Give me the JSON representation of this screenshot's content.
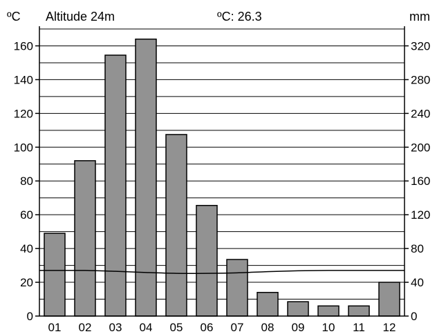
{
  "chart_data": {
    "type": "bar",
    "header": {
      "left_unit": "ºC",
      "altitude": "Altitude 24m",
      "mean_temp": "ºC: 26.3",
      "right_unit": "mm"
    },
    "categories": [
      "01",
      "02",
      "03",
      "04",
      "05",
      "06",
      "07",
      "08",
      "09",
      "10",
      "11",
      "12"
    ],
    "series": [
      {
        "axis": "right",
        "type": "bar",
        "values": [
          98,
          184,
          309,
          328,
          215,
          131,
          67,
          28,
          17,
          12,
          12,
          40
        ],
        "color": "#929292"
      },
      {
        "axis": "left",
        "type": "line",
        "values": [
          27.0,
          27.0,
          26.5,
          25.8,
          25.3,
          25.3,
          25.6,
          26.3,
          26.8,
          27.0,
          27.0,
          27.0
        ],
        "color": "#000000"
      }
    ],
    "y_left": {
      "ylim": [
        0,
        170
      ],
      "ticks": [
        0,
        20,
        40,
        60,
        80,
        100,
        120,
        140,
        160
      ]
    },
    "y_right": {
      "ylim": [
        0,
        340
      ],
      "ticks": [
        0,
        40,
        80,
        120,
        160,
        200,
        240,
        280,
        320
      ]
    },
    "grid": true
  }
}
